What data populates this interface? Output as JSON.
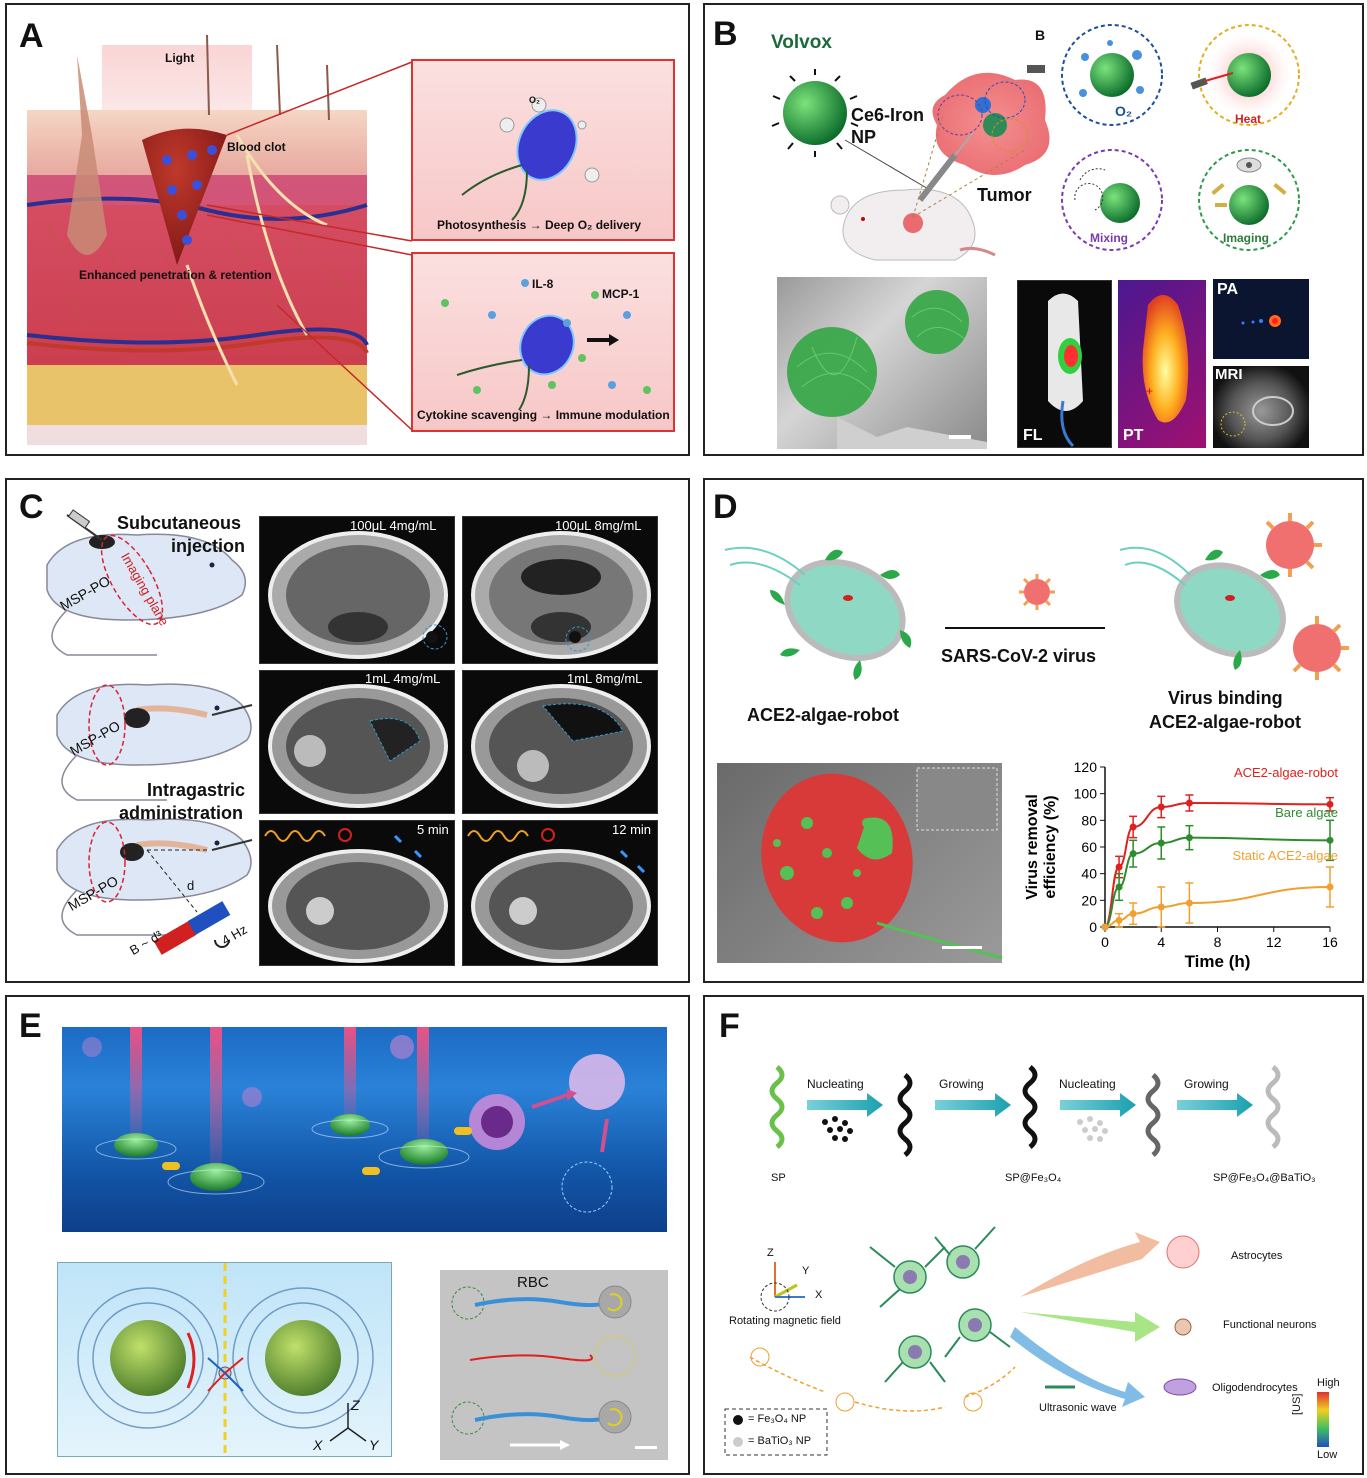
{
  "panels": {
    "A": {
      "label": "A",
      "light": "Light",
      "blood_clot": "Blood clot",
      "enhanced": "Enhanced penetration & retention",
      "o2": "O₂",
      "photo_caption": "Photosynthesis → Deep O₂ delivery",
      "il8": "IL-8",
      "mcp1": "MCP-1",
      "cyto_caption": "Cytokine scavenging → Immune modulation"
    },
    "B": {
      "label": "B",
      "volvox": "Volvox",
      "ce6_line1": "Ce6-Iron",
      "ce6_line2": "NP",
      "tumor": "Tumor",
      "inner_b": "B",
      "o2": "O₂",
      "heat": "Heat",
      "mixing": "Mixing",
      "imaging": "Imaging",
      "fl": "FL",
      "pt": "PT",
      "pa": "PA",
      "mri": "MRI"
    },
    "C": {
      "label": "C",
      "subcutaneous_line1": "Subcutaneous",
      "subcutaneous_line2": "injection",
      "intragastric_line1": "Intragastric",
      "intragastric_line2": "administration",
      "msp_po": "MSP-PO",
      "imaging_plane": "Imaging plane",
      "d": "d",
      "b_d3": "B ~ d³",
      "hz": "4 Hz",
      "img1": "100μL 4mg/mL",
      "img2": "100μL 8mg/mL",
      "img3": "1mL 4mg/mL",
      "img4": "1mL 8mg/mL",
      "img5": "5 min",
      "img6": "12 min"
    },
    "D": {
      "label": "D",
      "robot_label": "ACE2-algae-robot",
      "virus_label": "SARS-CoV-2 virus",
      "binding_line1": "Virus binding",
      "binding_line2": "ACE2-algae-robot"
    },
    "E": {
      "label": "E",
      "rbc": "RBC",
      "z": "Z",
      "x": "X",
      "y": "Y"
    },
    "F": {
      "label": "F",
      "nucleating1": "Nucleating",
      "growing1": "Growing",
      "nucleating2": "Nucleating",
      "growing2": "Growing",
      "sp": "SP",
      "sp_fe": "SP@Fe₃O₄",
      "sp_fe_ba": "SP@Fe₃O₄@BaTiO₃",
      "z": "Z",
      "y": "Y",
      "x": "X",
      "rotating": "Rotating magnetic field",
      "astrocytes": "Astrocytes",
      "neurons": "Functional neurons",
      "oligo": "Oligodendrocytes",
      "ultrasonic": "Ultrasonic wave",
      "legend_fe": "= Fe₃O₄ NP",
      "legend_ba": "= BaTiO₃ NP",
      "high": "High",
      "low": "Low",
      "us": "[US]"
    }
  },
  "chart_data": {
    "type": "line",
    "title": "",
    "xlabel": "Time (h)",
    "ylabel": "Virus removal efficiency (%)",
    "xlim": [
      0,
      16
    ],
    "ylim": [
      0,
      120
    ],
    "xticks": [
      0,
      4,
      8,
      12,
      16
    ],
    "yticks": [
      0,
      20,
      40,
      60,
      80,
      100,
      120
    ],
    "grid": false,
    "legend": "inline-right",
    "x": [
      0,
      1,
      2,
      4,
      6,
      16
    ],
    "series": [
      {
        "name": "ACE2-algae-robot",
        "color": "#e02020",
        "values": [
          0,
          45,
          75,
          90,
          93,
          92
        ],
        "err": [
          0,
          8,
          8,
          8,
          6,
          5
        ]
      },
      {
        "name": "Bare algae",
        "color": "#2e8b2e",
        "values": [
          0,
          30,
          55,
          63,
          67,
          65
        ],
        "err": [
          0,
          10,
          10,
          12,
          9,
          15
        ]
      },
      {
        "name": "Static ACE2-algae",
        "color": "#f0a030",
        "values": [
          0,
          5,
          10,
          15,
          18,
          30
        ],
        "err": [
          0,
          5,
          8,
          15,
          15,
          15
        ]
      }
    ]
  }
}
